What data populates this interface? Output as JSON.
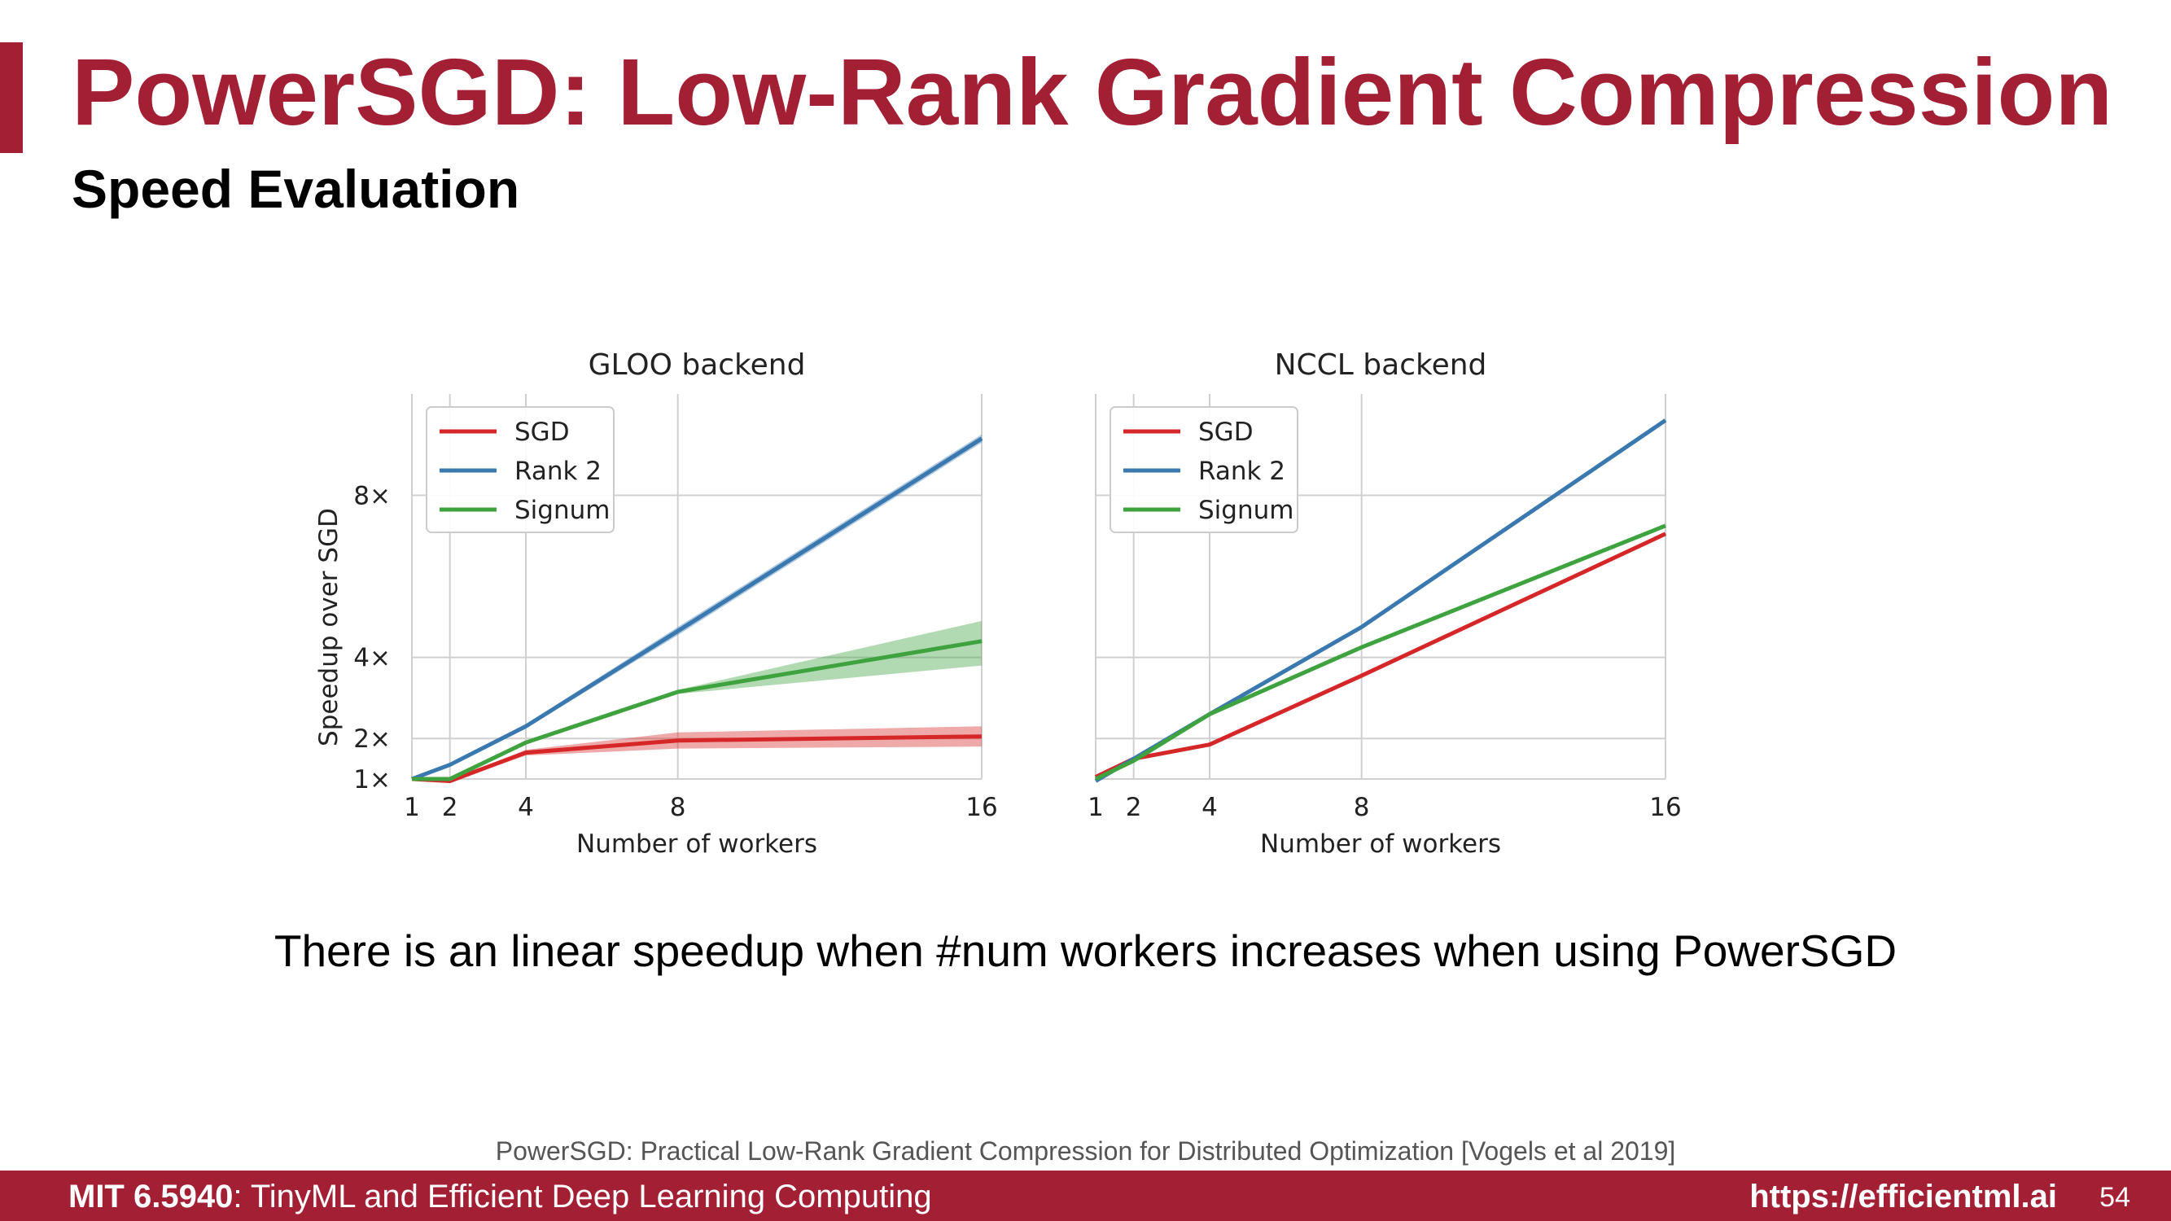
{
  "slide": {
    "title": "PowerSGD: Low-Rank Gradient Compression",
    "subtitle": "Speed Evaluation",
    "caption": "There is an linear speedup when #num workers increases when using PowerSGD",
    "reference": "PowerSGD: Practical Low-Rank Gradient Compression for Distributed Optimization [Vogels et al 2019]"
  },
  "footer": {
    "course_code": "MIT 6.5940",
    "course_name": ": TinyML and Efficient Deep Learning Computing",
    "url": "https://efficientml.ai",
    "page": "54"
  },
  "colors": {
    "accent": "#a31f34",
    "sgd": "#d62728",
    "rank2": "#3a78b0",
    "signum": "#3ea33e"
  },
  "chart_data": [
    {
      "type": "line",
      "title": "GLOO backend",
      "xlabel": "Number of workers",
      "ylabel": "Speedup over SGD",
      "x": [
        1,
        2,
        4,
        8,
        16
      ],
      "xticks": [
        "1",
        "2",
        "4",
        "8",
        "16"
      ],
      "yticks": [
        {
          "value": 1,
          "label": "1×"
        },
        {
          "value": 2,
          "label": "2×"
        },
        {
          "value": 4,
          "label": "4×"
        },
        {
          "value": 8,
          "label": "8×"
        }
      ],
      "xlim": [
        1,
        16
      ],
      "ylim": [
        1,
        10.5
      ],
      "grid": true,
      "legend_position": "top-left",
      "series": [
        {
          "name": "SGD",
          "color": "#d62728",
          "values": [
            1.0,
            0.95,
            1.65,
            1.95,
            2.05
          ],
          "band": [
            [
              1.0,
              1.0
            ],
            [
              0.92,
              0.98
            ],
            [
              1.58,
              1.72
            ],
            [
              1.75,
              2.15
            ],
            [
              1.8,
              2.3
            ]
          ]
        },
        {
          "name": "Rank 2",
          "color": "#3a78b0",
          "values": [
            1.0,
            1.35,
            2.3,
            4.65,
            9.4
          ],
          "band": [
            [
              1.0,
              1.0
            ],
            [
              1.32,
              1.38
            ],
            [
              2.25,
              2.35
            ],
            [
              4.55,
              4.75
            ],
            [
              9.3,
              9.5
            ]
          ]
        },
        {
          "name": "Signum",
          "color": "#3ea33e",
          "values": [
            1.0,
            1.0,
            1.9,
            3.15,
            4.4
          ],
          "band": [
            [
              1.0,
              1.0
            ],
            [
              0.97,
              1.03
            ],
            [
              1.85,
              1.95
            ],
            [
              3.1,
              3.2
            ],
            [
              3.8,
              4.9
            ]
          ]
        }
      ]
    },
    {
      "type": "line",
      "title": "NCCL backend",
      "xlabel": "Number of workers",
      "ylabel": "",
      "x": [
        1,
        2,
        4,
        8,
        16
      ],
      "xticks": [
        "1",
        "2",
        "4",
        "8",
        "16"
      ],
      "yticks": [
        {
          "value": 1,
          "label": ""
        },
        {
          "value": 2,
          "label": ""
        },
        {
          "value": 4,
          "label": ""
        },
        {
          "value": 8,
          "label": ""
        }
      ],
      "xlim": [
        1,
        16
      ],
      "ylim": [
        1,
        10.5
      ],
      "grid": true,
      "legend_position": "top-left",
      "series": [
        {
          "name": "SGD",
          "color": "#d62728",
          "values": [
            1.05,
            1.5,
            1.85,
            3.55,
            7.05
          ]
        },
        {
          "name": "Rank 2",
          "color": "#3a78b0",
          "values": [
            0.95,
            1.5,
            2.6,
            4.75,
            9.85
          ]
        },
        {
          "name": "Signum",
          "color": "#3ea33e",
          "values": [
            1.0,
            1.45,
            2.6,
            4.25,
            7.25
          ]
        }
      ]
    }
  ]
}
